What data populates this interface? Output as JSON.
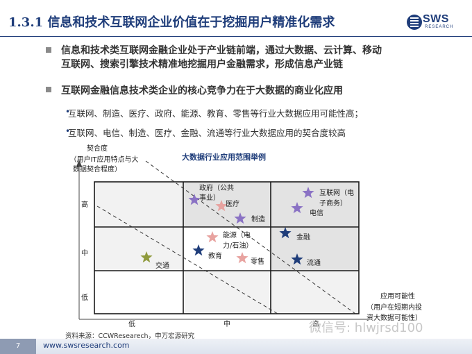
{
  "header": {
    "title": "1.3.1 信息和技术互联网企业价值在于挖掘用户精准化需求",
    "logo_text": "SWS",
    "logo_sub": "RESEARCH"
  },
  "bullets": [
    {
      "line1": "信息和技术类互联网金融企业处于产业链前端，通过大数据、云计算、移动",
      "line2": "互联网、搜索引擎技术精准地挖掘用户金融需求，形成信息产业链"
    },
    {
      "line1": "互联网金融信息技术类企业的核心竞争力在于大数据的商业化应用"
    }
  ],
  "sub_bullets": [
    "互联网、制造、医疗、政府、能源、教育、零售等行业大数据应用可能性高；",
    "互联网、电信、制造、医疗、金融、流通等行业大数据应用的契合度较高"
  ],
  "chart_data": {
    "type": "scatter",
    "title": "大数据行业应用范围举例",
    "ylabel": "契合度（用户IT应用特点与大数据契合程度）",
    "ylabel_lines": [
      "契合度",
      "（用户IT应用特点与大",
      "数据契合程度）"
    ],
    "xlabel": "应用可能性（用户在短期内投资大数据可能性）",
    "xlabel_lines": [
      "应用可能性",
      "（用户在短期内投",
      "资大数据可能性）"
    ],
    "x_ticks": [
      "低",
      "中",
      "高"
    ],
    "y_ticks": [
      "高",
      "中",
      "低"
    ],
    "points": [
      {
        "label": "政府（公共事业）",
        "label_lines": [
          "政府（公共",
          "事业）"
        ],
        "star": "purple",
        "cell": "high-mid"
      },
      {
        "label": "医疗",
        "star": "pink",
        "cell": "high-mid"
      },
      {
        "label": "制造",
        "star": "purple",
        "cell": "high-mid"
      },
      {
        "label": "互联网（电子商务）",
        "label_lines": [
          "互联网（电",
          "子商务）"
        ],
        "star": "purple",
        "cell": "high-high"
      },
      {
        "label": "电信",
        "star": "purple",
        "cell": "high-high"
      },
      {
        "label": "能源（电力/石油）",
        "label_lines": [
          "能源（电",
          "力/石油）"
        ],
        "star": "pink",
        "cell": "mid-mid"
      },
      {
        "label": "教育",
        "star": "navy",
        "cell": "mid-mid"
      },
      {
        "label": "零售",
        "star": "pink",
        "cell": "mid-mid"
      },
      {
        "label": "金融",
        "star": "navy",
        "cell": "mid-high"
      },
      {
        "label": "流通",
        "star": "navy",
        "cell": "mid-high"
      },
      {
        "label": "交通",
        "star": "olive",
        "cell": "mid-low"
      }
    ],
    "colors": {
      "purple": "#8a72c4",
      "pink": "#e8a3a0",
      "navy": "#1f3d7a",
      "olive": "#8f9a3c"
    }
  },
  "source": "资料来源：CCWResearech，申万宏源研究",
  "footer": {
    "page": "7",
    "site": "www.swsresearch.com",
    "watermark": "微信号: hlwjrsd100"
  },
  "colors": {
    "brand": "#1f3d7a",
    "grid_bg_gray": "#e3e3e3",
    "grid_bg_light": "#f2f2f2"
  }
}
